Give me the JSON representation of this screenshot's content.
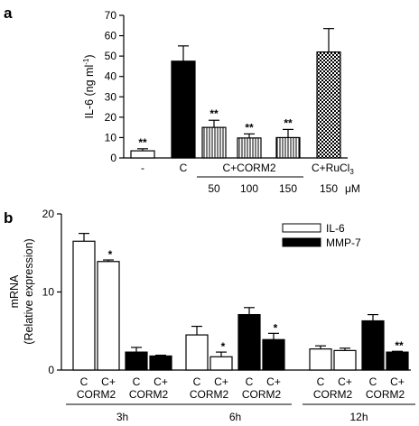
{
  "chart_data": [
    {
      "panel": "a",
      "type": "bar",
      "ylabel": "IL-6 (ng ml",
      "ylabel_sup": "-1",
      "ylabel_close": ")",
      "ylim": [
        0,
        70
      ],
      "yticks": [
        "0",
        "10",
        "20",
        "30",
        "40",
        "50",
        "60",
        "70"
      ],
      "grid": false,
      "bars": [
        {
          "value": 3.5,
          "error": 1.0,
          "fill": "white",
          "sig": "**"
        },
        {
          "value": 47.5,
          "error": 7.5,
          "fill": "black",
          "sig": ""
        },
        {
          "value": 15.0,
          "error": 3.5,
          "fill": "vlines",
          "sig": "**"
        },
        {
          "value": 9.8,
          "error": 2.0,
          "fill": "vlines",
          "sig": "**"
        },
        {
          "value": 10.0,
          "error": 4.0,
          "fill": "vlines",
          "sig": "**"
        },
        {
          "value": 52.0,
          "error": 11.5,
          "fill": "checker",
          "sig": ""
        }
      ],
      "category_labels": [
        "-",
        "C",
        "C+CORM2",
        "C+RuCl"
      ],
      "ruthenium_sub": "3",
      "dose_labels": [
        "50",
        "100",
        "150",
        "150"
      ],
      "dose_unit": "μM"
    },
    {
      "panel": "b",
      "type": "bar",
      "ylabel": "mRNA",
      "ylabel2": "(Relative expression)",
      "ylim": [
        0,
        20
      ],
      "yticks": [
        "0",
        "10",
        "20"
      ],
      "grid": false,
      "legend": {
        "position": "top-right",
        "entries": [
          {
            "name": "IL-6",
            "color": "#ffffff"
          },
          {
            "name": "MMP-7",
            "color": "#000000"
          }
        ]
      },
      "groups": [
        {
          "time": "3h",
          "il6": [
            16.5,
            13.9
          ],
          "il6_err": [
            1.0,
            0.2
          ],
          "mmp7": [
            2.3,
            1.8
          ],
          "mmp7_err": [
            0.6,
            0.1
          ],
          "sig": {
            "il6": "*",
            "mmp7": ""
          }
        },
        {
          "time": "6h",
          "il6": [
            4.5,
            1.7
          ],
          "il6_err": [
            1.1,
            0.6
          ],
          "mmp7": [
            7.1,
            3.9
          ],
          "mmp7_err": [
            0.9,
            0.8
          ],
          "sig": {
            "il6": "*",
            "mmp7": "*"
          }
        },
        {
          "time": "12h",
          "il6": [
            2.7,
            2.5
          ],
          "il6_err": [
            0.4,
            0.3
          ],
          "mmp7": [
            6.3,
            2.3
          ],
          "mmp7_err": [
            0.8,
            0.1
          ],
          "sig": {
            "il6": "",
            "mmp7": "**"
          }
        }
      ],
      "bar_labels": [
        "C",
        "C+",
        "C",
        "C+"
      ],
      "corm_label": "CORM2"
    }
  ],
  "panel_labels": {
    "a": "a",
    "b": "b"
  }
}
